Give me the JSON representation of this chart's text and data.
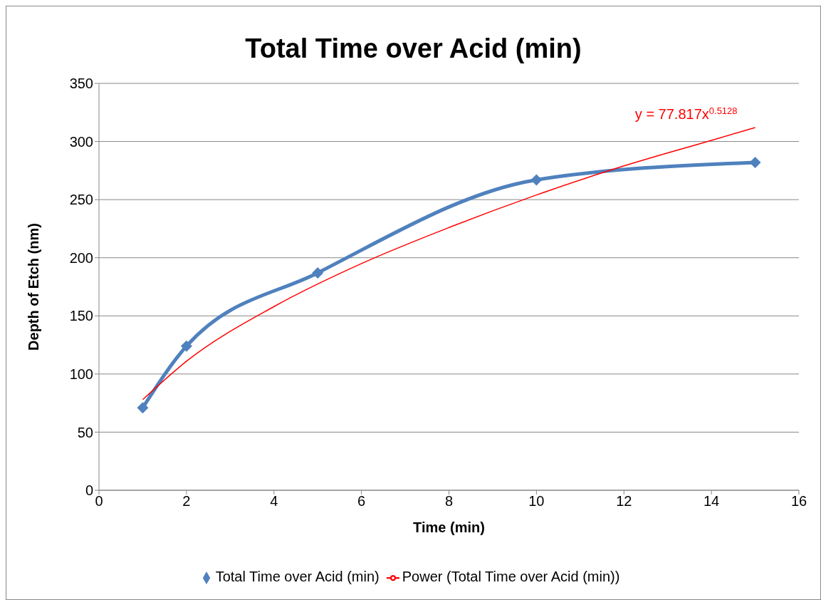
{
  "chart_data": {
    "type": "line",
    "title": "Total Time over Acid (min)",
    "xlabel": "Time (min)",
    "ylabel": "Depth of Etch (nm)",
    "xlim": [
      0,
      16
    ],
    "xticks": [
      0,
      2,
      4,
      6,
      8,
      10,
      12,
      14,
      16
    ],
    "ylim": [
      0,
      350
    ],
    "yticks": [
      0,
      50,
      100,
      150,
      200,
      250,
      300,
      350
    ],
    "grid": "y",
    "legend": "bottom",
    "line_style": "solid",
    "series": [
      {
        "name": "Total Time over Acid (min)",
        "color": "#4f81bd",
        "marker": "diamond",
        "x": [
          1,
          2,
          5,
          10,
          15
        ],
        "values": [
          71,
          124,
          187,
          267,
          282
        ]
      },
      {
        "name": "Power (Total Time over Acid (min))",
        "color": "#ff0000",
        "marker": "none",
        "x": [
          1,
          2,
          4,
          6,
          8,
          10,
          12,
          14,
          15
        ],
        "values": [
          78,
          111,
          158,
          195,
          226,
          254,
          279,
          301,
          312
        ]
      }
    ],
    "annotations": [
      "y = 77.817x$^{0.5128}$"
    ]
  }
}
